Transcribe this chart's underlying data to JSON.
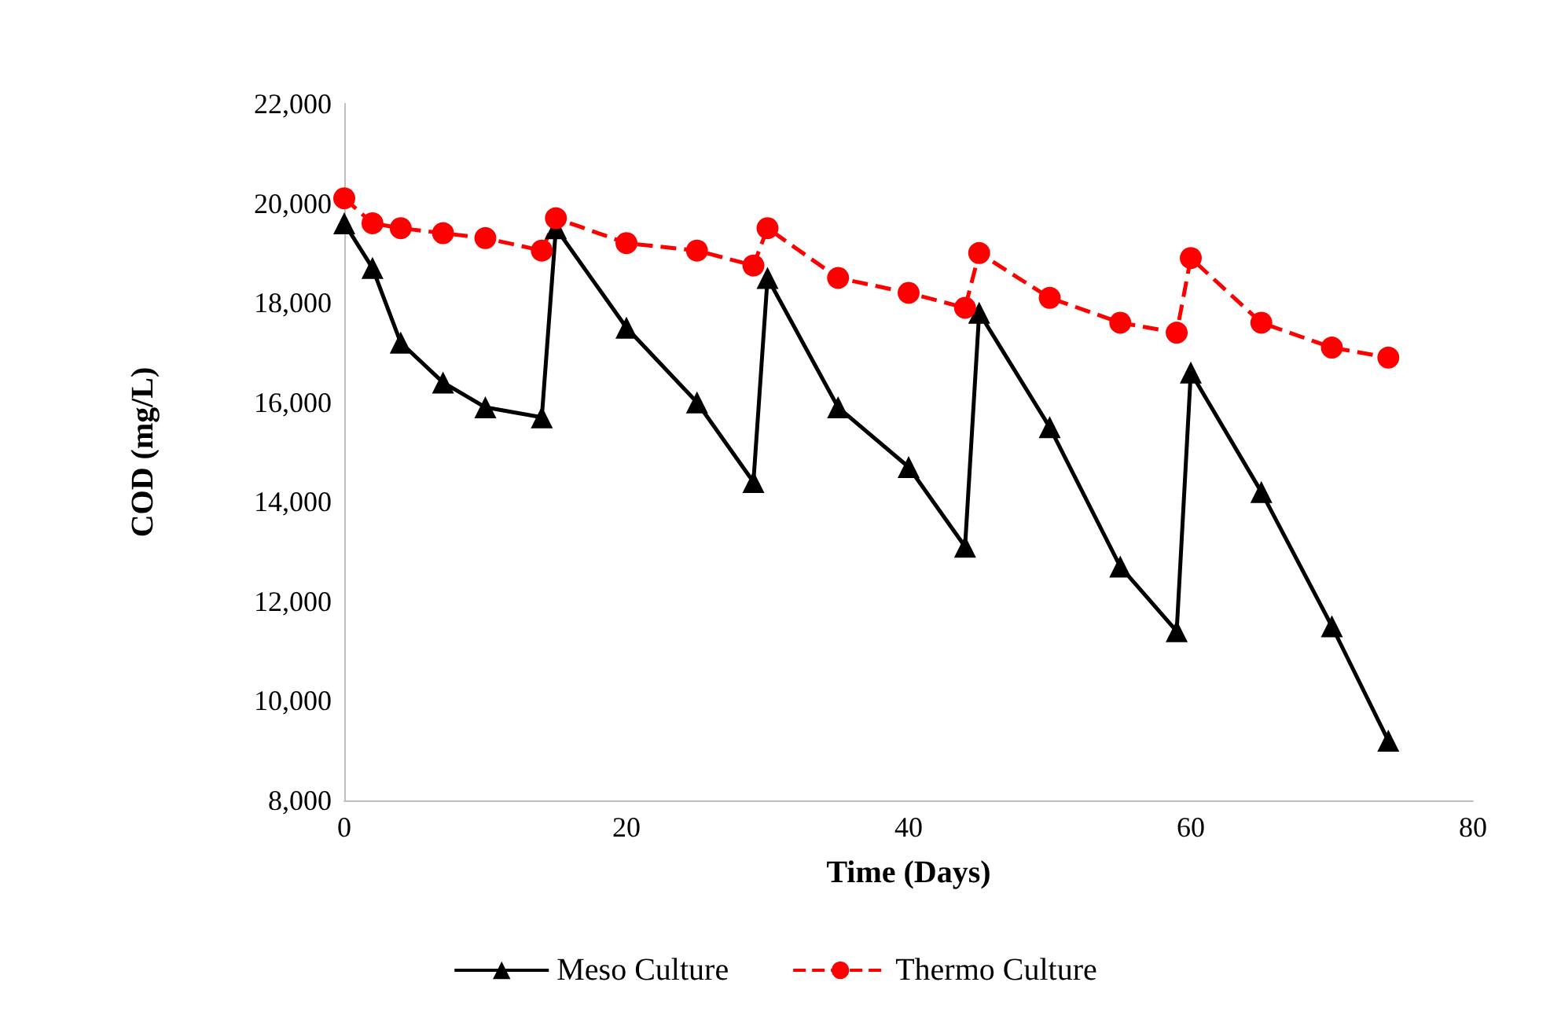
{
  "chart_data": {
    "type": "line",
    "xlabel": "Time (Days)",
    "ylabel": "COD (mg/L)",
    "xlim": [
      0,
      80
    ],
    "xticks": [
      0,
      20,
      40,
      60,
      80
    ],
    "ylim": [
      8000,
      22000
    ],
    "yticks": [
      {
        "value": 8000,
        "label": "8,000"
      },
      {
        "value": 10000,
        "label": "10,000"
      },
      {
        "value": 12000,
        "label": "12,000"
      },
      {
        "value": 14000,
        "label": "14,000"
      },
      {
        "value": 16000,
        "label": "16,000"
      },
      {
        "value": 18000,
        "label": "18,000"
      },
      {
        "value": 20000,
        "label": "20,000"
      },
      {
        "value": 22000,
        "label": "22,000"
      }
    ],
    "grid": false,
    "legend": "bottom",
    "x": [
      0,
      2,
      4,
      7,
      10,
      14,
      15,
      20,
      25,
      29,
      30,
      35,
      40,
      44,
      45,
      50,
      55,
      59,
      60,
      65,
      70,
      74
    ],
    "series": [
      {
        "name": "Meso Culture",
        "color": "#000000",
        "marker": "triangle",
        "line_style": "solid",
        "values": [
          19600,
          18700,
          17200,
          16400,
          15900,
          15700,
          19500,
          17500,
          16000,
          14400,
          18500,
          15900,
          14700,
          13100,
          17800,
          15500,
          12700,
          11400,
          16600,
          14200,
          11500,
          9200
        ]
      },
      {
        "name": "Thermo Culture",
        "color": "#ff0000",
        "marker": "circle",
        "line_style": "dashed",
        "values": [
          20100,
          19600,
          19500,
          19400,
          19300,
          19050,
          19700,
          19200,
          19050,
          18750,
          19500,
          18500,
          18200,
          17900,
          19000,
          18100,
          17600,
          17400,
          18900,
          17600,
          17100,
          16900
        ]
      }
    ]
  }
}
